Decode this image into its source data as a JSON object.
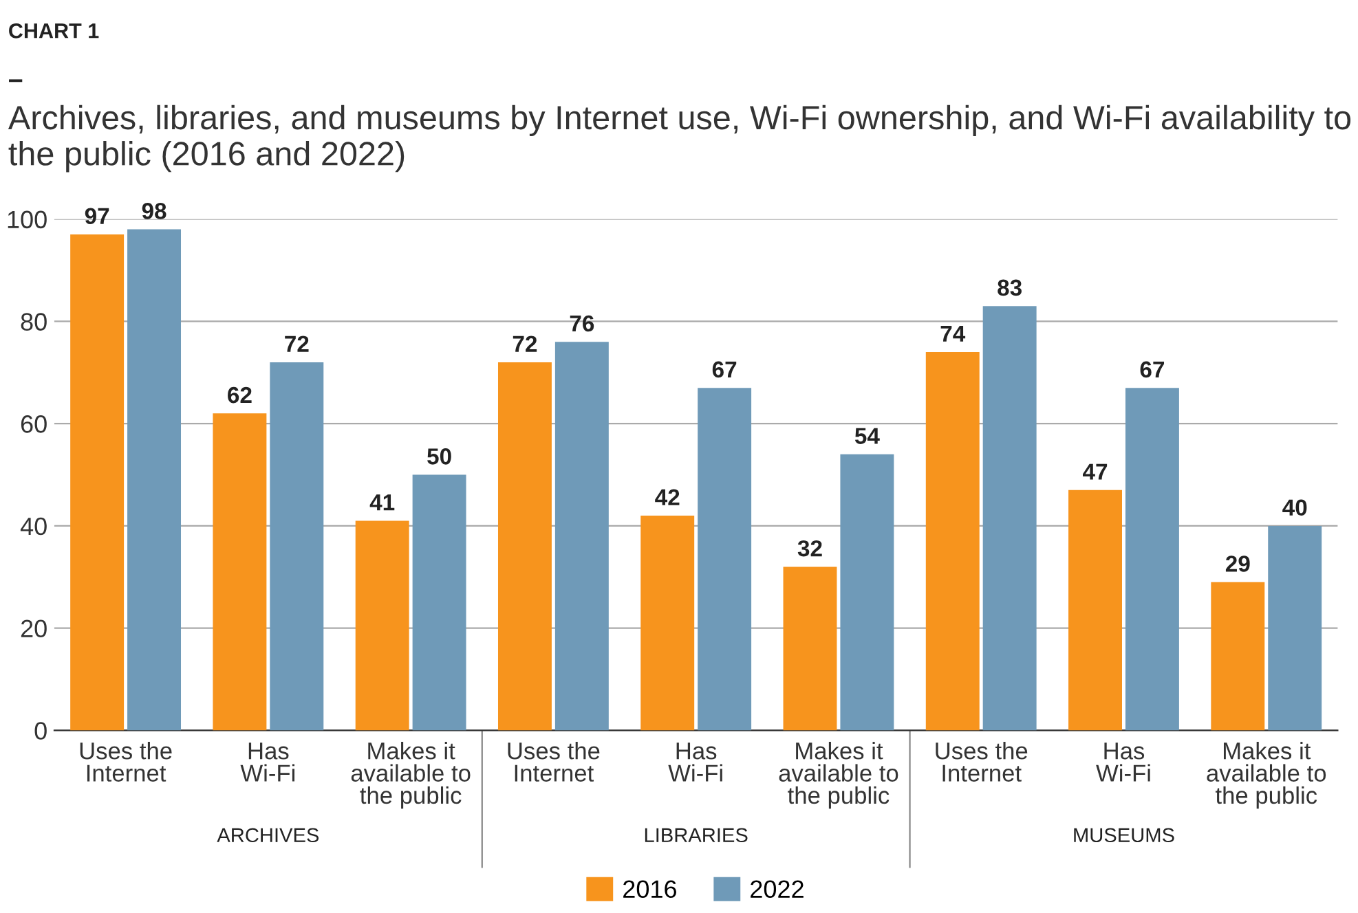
{
  "chart_data": {
    "type": "bar",
    "title": "Archives, libraries, and museums by Internet use, Wi-Fi ownership, and Wi-Fi availability to the public (2016 and 2022)",
    "categories": [
      "Uses the\nInternet",
      "Has\nWi-Fi",
      "Makes it\navailable to\nthe public",
      "Uses the\nInternet",
      "Has\nWi-Fi",
      "Makes it\navailable to\nthe public",
      "Uses the\nInternet",
      "Has\nWi-Fi",
      "Makes it\navailable to\nthe public"
    ],
    "series": [
      {
        "name": "2016",
        "color": "#f7941d",
        "values": [
          97,
          62,
          41,
          72,
          42,
          32,
          74,
          47,
          29
        ]
      },
      {
        "name": "2022",
        "color": "#6f9ab8",
        "values": [
          98,
          72,
          50,
          76,
          67,
          54,
          83,
          67,
          40
        ]
      }
    ],
    "ylim": [
      0,
      100
    ],
    "yticks": [
      0,
      20,
      40,
      60,
      80,
      100
    ],
    "grid": "y",
    "legend": "bottom",
    "data_labels": true,
    "annotations": [
      "CHART 1",
      "–",
      "ARCHIVES",
      "LIBRARIES",
      "MUSEUMS"
    ]
  }
}
